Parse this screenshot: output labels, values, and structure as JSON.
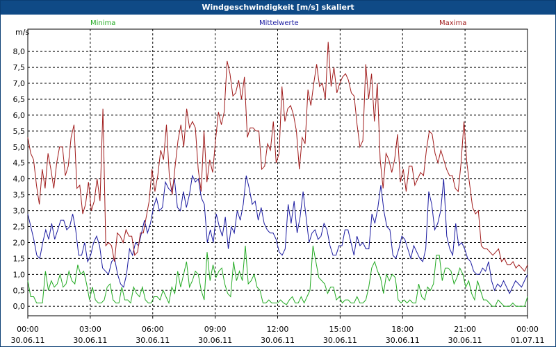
{
  "chart_data": {
    "type": "line",
    "title": "Windgeschwindigkeit [m/s] skaliert",
    "ylabel": "m/s",
    "ylim": [
      -0.3,
      8.7
    ],
    "y_ticks": [
      "0,0",
      "0,5",
      "1,0",
      "1,5",
      "2,0",
      "2,5",
      "3,0",
      "3,5",
      "4,0",
      "4,5",
      "5,0",
      "5,5",
      "6,0",
      "6,5",
      "7,0",
      "7,5",
      "8,0"
    ],
    "y_tick_values": [
      0,
      0.5,
      1,
      1.5,
      2,
      2.5,
      3,
      3.5,
      4,
      4.5,
      5,
      5.5,
      6,
      6.5,
      7,
      7.5,
      8
    ],
    "x_range_hours": [
      0,
      24
    ],
    "x_ticks": [
      {
        "time": "00:00",
        "date": "30.06.11",
        "hour": 0
      },
      {
        "time": "03:00",
        "date": "30.06.11",
        "hour": 3
      },
      {
        "time": "06:00",
        "date": "30.06.11",
        "hour": 6
      },
      {
        "time": "09:00",
        "date": "30.06.11",
        "hour": 9
      },
      {
        "time": "12:00",
        "date": "30.06.11",
        "hour": 12
      },
      {
        "time": "15:00",
        "date": "30.06.11",
        "hour": 15
      },
      {
        "time": "18:00",
        "date": "30.06.11",
        "hour": 18
      },
      {
        "time": "21:00",
        "date": "30.06.11",
        "hour": 21
      },
      {
        "time": "00:00",
        "date": "01.07.11",
        "hour": 24
      }
    ],
    "grid": true,
    "series": [
      {
        "name": "Minima",
        "color": "#22aa22",
        "values": [
          0.8,
          0.3,
          0.3,
          0.1,
          0.1,
          0.1,
          1.1,
          0.5,
          0.8,
          0.6,
          0.7,
          1.0,
          0.6,
          0.7,
          1.1,
          0.8,
          0.7,
          1.3,
          1.0,
          1.1,
          0.7,
          0.2,
          0.6,
          0.2,
          0.1,
          0.1,
          0.2,
          0.6,
          0.7,
          0.2,
          0.1,
          0.1,
          0.6,
          0.2,
          0.2,
          0.1,
          0.6,
          0.4,
          0.3,
          0.6,
          0.2,
          0.1,
          0.1,
          0.3,
          0.3,
          0.2,
          0.5,
          0.3,
          0.1,
          0.6,
          0.4,
          1.1,
          0.6,
          1.0,
          1.4,
          0.6,
          0.8,
          1.1,
          1.0,
          0.5,
          0.2,
          1.7,
          0.8,
          1.3,
          0.9,
          1.1,
          1.2,
          0.7,
          0.4,
          0.3,
          1.4,
          0.8,
          1.1,
          0.8,
          1.9,
          0.7,
          0.8,
          1.0,
          0.6,
          0.5,
          0.1,
          0.1,
          0.2,
          0.1,
          0.1,
          0.1,
          0.2,
          0.1,
          0.05,
          0.2,
          0.3,
          0.1,
          0.1,
          0.3,
          0.1,
          0.3,
          0.5,
          1.9,
          1.4,
          0.9,
          0.8,
          0.7,
          0.4,
          0.6,
          0.6,
          0.2,
          0.3,
          0.1,
          0.2,
          0.2,
          0.1,
          0.1,
          0.3,
          0.1,
          0.1,
          0.2,
          0.6,
          1.2,
          1.4,
          1.1,
          0.9,
          0.4,
          1.0,
          0.8,
          1.0,
          0.9,
          0.2,
          0.1,
          0.2,
          0.1,
          0.2,
          0.1,
          0.1,
          0.7,
          0.3,
          0.2,
          0.6,
          0.5,
          0.7,
          1.6,
          1.6,
          0.8,
          1.2,
          1.2,
          1.1,
          0.7,
          0.9,
          1.2,
          1.0,
          0.6,
          0.8,
          0.4,
          0.2,
          0.8,
          0.5,
          0.2,
          0.2,
          0.1,
          0.0,
          0.0,
          0.2,
          0.1,
          0.0,
          0.0,
          0.0,
          0.1,
          0.0,
          0.0,
          0.0,
          0.0,
          0.3
        ]
      },
      {
        "name": "Mittelwerte",
        "color": "#1a1aa0",
        "values": [
          2.9,
          2.5,
          2.1,
          1.6,
          1.5,
          2.0,
          2.4,
          2.1,
          2.6,
          2.1,
          2.4,
          2.7,
          2.7,
          2.4,
          2.5,
          2.9,
          2.4,
          1.6,
          1.6,
          2.0,
          1.4,
          1.6,
          2.0,
          2.2,
          1.9,
          1.2,
          1.1,
          1.0,
          1.4,
          1.5,
          1.0,
          0.7,
          0.6,
          1.0,
          1.8,
          1.6,
          2.0,
          1.9,
          2.3,
          2.7,
          2.3,
          2.6,
          3.1,
          3.4,
          3.0,
          3.1,
          3.9,
          3.7,
          3.6,
          4.0,
          3.1,
          3.0,
          3.6,
          3.1,
          3.5,
          4.1,
          3.9,
          4.0,
          3.4,
          3.2,
          2.0,
          2.4,
          2.0,
          2.9,
          2.5,
          2.2,
          2.8,
          1.8,
          2.5,
          2.3,
          3.0,
          2.7,
          3.2,
          4.1,
          3.7,
          3.2,
          3.3,
          2.7,
          3.1,
          2.6,
          2.4,
          2.3,
          2.3,
          2.1,
          1.7,
          1.6,
          1.8,
          3.2,
          2.6,
          3.3,
          2.3,
          2.8,
          3.6,
          2.8,
          2.0,
          2.3,
          2.4,
          2.1,
          2.2,
          2.6,
          2.4,
          1.9,
          1.6,
          1.6,
          1.9,
          1.9,
          2.4,
          2.4,
          2.0,
          1.6,
          2.2,
          1.9,
          2.0,
          1.8,
          1.8,
          2.9,
          2.6,
          3.1,
          3.8,
          3.0,
          2.5,
          2.4,
          1.6,
          1.5,
          1.8,
          2.2,
          2.1,
          1.8,
          1.5,
          1.9,
          1.7,
          1.5,
          1.4,
          1.8,
          3.6,
          3.2,
          2.4,
          2.6,
          3.0,
          4.0,
          2.2,
          1.8,
          1.6,
          2.6,
          1.9,
          2.0,
          1.8,
          1.5,
          1.4,
          1.1,
          1.0,
          1.0,
          1.2,
          1.1,
          1.4,
          0.8,
          0.5,
          0.7,
          0.6,
          0.8,
          0.6,
          0.4,
          0.6,
          0.8,
          0.7,
          0.6,
          0.8,
          1.0
        ]
      },
      {
        "name": "Maxima",
        "color": "#a01a1a",
        "values": [
          5.3,
          4.8,
          4.6,
          3.8,
          3.2,
          4.3,
          3.7,
          4.8,
          4.3,
          3.7,
          4.5,
          5.0,
          5.0,
          4.1,
          4.4,
          5.3,
          5.7,
          3.7,
          3.8,
          2.9,
          3.2,
          3.9,
          3.0,
          3.3,
          4.0,
          3.3,
          6.2,
          1.9,
          2.0,
          1.9,
          1.4,
          2.3,
          2.2,
          2.0,
          2.4,
          2.2,
          2.2,
          1.6,
          1.7,
          2.3,
          2.3,
          2.8,
          3.3,
          4.3,
          3.6,
          4.1,
          4.9,
          4.6,
          5.7,
          4.1,
          3.5,
          4.4,
          5.2,
          5.7,
          5.0,
          6.2,
          5.6,
          5.8,
          5.6,
          4.3,
          3.6,
          5.5,
          3.9,
          4.6,
          4.2,
          5.2,
          6.1,
          5.7,
          6.1,
          7.7,
          7.3,
          6.6,
          6.7,
          7.1,
          6.5,
          7.2,
          5.3,
          5.6,
          5.6,
          5.5,
          5.5,
          4.3,
          4.4,
          5.1,
          4.9,
          5.8,
          4.5,
          4.8,
          6.9,
          5.8,
          6.2,
          6.3,
          6.0,
          5.5,
          4.3,
          5.3,
          5.1,
          6.8,
          6.3,
          7.0,
          7.6,
          6.9,
          7.0,
          6.5,
          8.3,
          6.9,
          7.5,
          6.7,
          7.0,
          7.2,
          7.3,
          7.1,
          6.7,
          6.6,
          5.7,
          5.0,
          5.2,
          7.6,
          6.5,
          7.3,
          5.8,
          7.0,
          4.6,
          3.7,
          4.8,
          4.6,
          4.2,
          4.6,
          5.4,
          3.9,
          4.3,
          3.6,
          4.4,
          4.4,
          3.8,
          4.0,
          4.2,
          4.1,
          4.9,
          5.5,
          5.4,
          4.8,
          4.5,
          4.9,
          4.6,
          4.3,
          4.1,
          4.1,
          3.7,
          3.6,
          4.5,
          5.8,
          4.5,
          3.8,
          3.1,
          2.9,
          3.0,
          1.9,
          1.8,
          1.8,
          1.7,
          1.6,
          1.7,
          1.8,
          1.4,
          1.5,
          1.3,
          1.3,
          1.4,
          1.2,
          1.3,
          1.2,
          1.1,
          1.3
        ]
      }
    ]
  }
}
